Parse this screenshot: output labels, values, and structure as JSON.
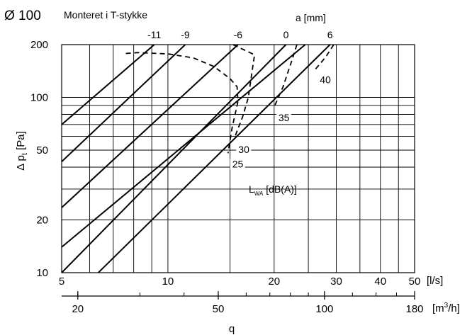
{
  "chart_data": {
    "type": "line",
    "title": "Ø 100",
    "subtitle": "Monteret i T-stykke",
    "x_scale": "log",
    "y_scale": "log",
    "xlim": [
      5,
      50
    ],
    "ylim": [
      10,
      200
    ],
    "xlabel": "q",
    "x_unit": "[l/s]",
    "x_ticks": [
      5,
      10,
      20,
      30,
      40,
      50
    ],
    "x_ticks_extra": [
      6,
      7,
      8,
      9,
      15,
      25,
      35,
      45
    ],
    "x2_unit": "[m³/h]",
    "x2_ticks": [
      20,
      50,
      100,
      180
    ],
    "x2_factor": 3.6,
    "ylabel": "Δ pt [Pa]",
    "ylabel_main": "Δ p",
    "ylabel_sub": "t",
    "ylabel_unit": " [Pa]",
    "y_ticks": [
      10,
      20,
      50,
      100,
      200
    ],
    "y_grid": [
      10,
      20,
      30,
      40,
      50,
      60,
      70,
      80,
      90,
      100,
      200
    ],
    "top_axis_label": "a [mm]",
    "damper_lines": [
      {
        "label": "-11",
        "points": [
          [
            5,
            70
          ],
          [
            9.15,
            200
          ]
        ]
      },
      {
        "label": "-9",
        "points": [
          [
            5,
            43
          ],
          [
            11.2,
            200
          ]
        ]
      },
      {
        "label": "-6",
        "points": [
          [
            5,
            23.5
          ],
          [
            15.8,
            200
          ]
        ]
      },
      {
        "label": "0",
        "points": [
          [
            5,
            10
          ],
          [
            21.6,
            200
          ]
        ]
      },
      {
        "label": "6",
        "points": [
          [
            6.35,
            10
          ],
          [
            28.8,
            200
          ]
        ]
      },
      {
        "label": "",
        "points": [
          [
            5,
            14
          ],
          [
            24.5,
            200
          ]
        ]
      }
    ],
    "sound_label": "L",
    "sound_label_sub": "WA",
    "sound_label_unit": " [dB(A)]",
    "sound_curves": [
      {
        "label": "25",
        "points": [
          [
            7.6,
            178
          ],
          [
            8.2,
            180
          ],
          [
            10,
            177
          ],
          [
            11.8,
            168
          ],
          [
            13.5,
            150
          ],
          [
            15,
            128
          ],
          [
            15.7,
            115
          ],
          [
            15.8,
            95
          ],
          [
            15.2,
            67
          ],
          [
            14.8,
            48
          ]
        ]
      },
      {
        "label": "30",
        "points": [
          [
            15.3,
            200
          ],
          [
            17.6,
            175
          ],
          [
            17.4,
            150
          ],
          [
            16.9,
            100
          ],
          [
            16.3,
            78
          ],
          [
            15.4,
            58
          ]
        ]
      },
      {
        "label": "35",
        "points": [
          [
            23.2,
            200
          ],
          [
            22.4,
            160
          ],
          [
            21.2,
            115
          ],
          [
            20,
            88
          ]
        ]
      },
      {
        "label": "40",
        "points": [
          [
            29.5,
            200
          ],
          [
            28,
            170
          ],
          [
            26.2,
            145
          ]
        ]
      }
    ],
    "grid": true
  }
}
